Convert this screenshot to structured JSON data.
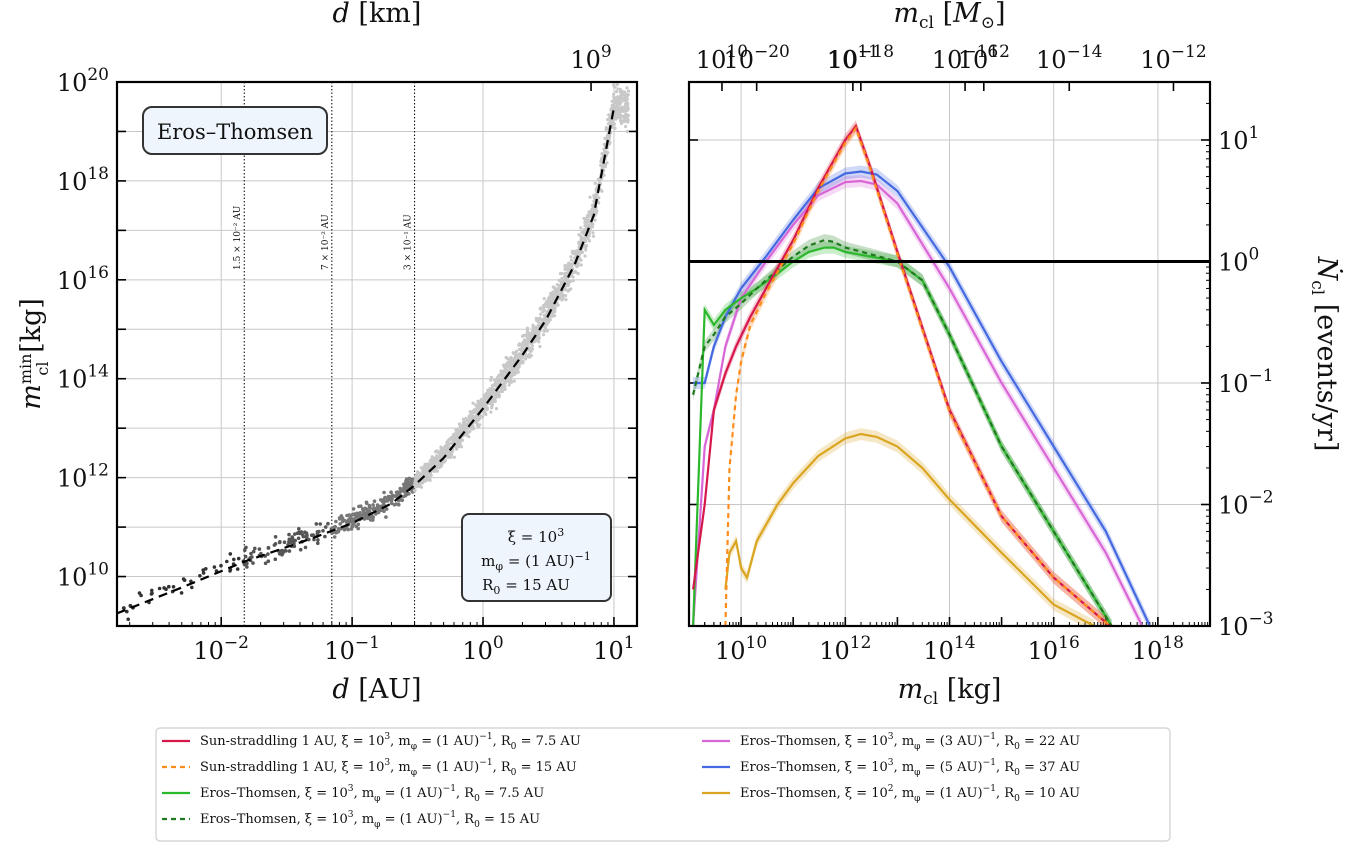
{
  "chart_data": [
    {
      "type": "scatter",
      "panel": "left",
      "xlabel": "d [AU]",
      "ylabel": "m_cl^min [kg]",
      "top_xlabel": "d [km]",
      "xscale": "log",
      "yscale": "log",
      "xlim": [
        0.0016,
        15
      ],
      "ylim": [
        1000000000.0,
        1e+20
      ],
      "top_xlim_km": [
        240000000.0,
        2240000000000.0
      ],
      "x_ticks": [
        "10^{-2}",
        "10^{-1}",
        "10^{0}",
        "10^{1}"
      ],
      "y_ticks": [
        "10^{10}",
        "10^{12}",
        "10^{14}",
        "10^{16}",
        "10^{18}",
        "10^{20}"
      ],
      "top_x_ticks": [
        "10^{9}",
        "10^{10}",
        "10^{11}",
        "10^{12}"
      ],
      "grid": true,
      "label_box": "Eros–Thomsen",
      "param_box": [
        "ξ = 10",
        "3",
        "m",
        "φ",
        " = (1 AU)",
        "−1",
        "R",
        "0",
        " = 15 AU"
      ],
      "vlines": [
        {
          "x": 0.015,
          "label": "1.5 × 10⁻² AU"
        },
        {
          "x": 0.07,
          "label": "7 × 10⁻² AU"
        },
        {
          "x": 0.3,
          "label": "3 × 10⁻¹ AU"
        }
      ],
      "curve": {
        "style": "dashed",
        "x": [
          0.0016,
          0.005,
          0.015,
          0.05,
          0.1,
          0.2,
          0.3,
          0.5,
          1,
          2,
          3,
          5,
          7,
          10
        ],
        "y": [
          1800000000.0,
          6000000000.0,
          20000000000.0,
          60000000000.0,
          120000000000.0,
          300000000000.0,
          700000000000.0,
          2500000000000.0,
          25000000000000.0,
          300000000000000.0,
          1500000000000000.0,
          2e+16,
          2e+17,
          3e+19
        ]
      },
      "scatter_groups": [
        {
          "color": "#333333",
          "range_x": [
            0.0018,
            0.015
          ],
          "points": 40
        },
        {
          "color": "#555555",
          "range_x": [
            0.015,
            0.07
          ],
          "points": 90
        },
        {
          "color": "#777777",
          "range_x": [
            0.07,
            0.3
          ],
          "points": 220
        },
        {
          "color": "#c8c8c8",
          "range_x": [
            0.3,
            13
          ],
          "points": 1900
        }
      ]
    },
    {
      "type": "line",
      "panel": "right",
      "xlabel": "m_cl [kg]",
      "ylabel": "Ṅ_cl [events/yr]",
      "top_xlabel": "m_cl [M_⊙]",
      "xscale": "log",
      "yscale": "log",
      "xlim": [
        1000000000.0,
        1e+19
      ],
      "ylim": [
        0.001,
        30
      ],
      "top_xlim_msun": [
        5e-22,
        5e-12
      ],
      "x_ticks": [
        "10^{10}",
        "10^{12}",
        "10^{14}",
        "10^{16}",
        "10^{18}"
      ],
      "y_ticks": [
        "10^{-3}",
        "10^{-2}",
        "10^{-1}",
        "10^{0}",
        "10^{1}"
      ],
      "top_x_ticks": [
        "10^{-20}",
        "10^{-18}",
        "10^{-16}",
        "10^{-14}",
        "10^{-12}"
      ],
      "hline": 1,
      "grid": true,
      "series": [
        {
          "name": "Sun-straddling 1 AU, ξ = 10^3, m_φ = (1 AU)^{-1}, R_0 = 7.5 AU",
          "color": "#d6174c",
          "dash": false,
          "x": [
            1200000000.0,
            2000000000.0,
            3000000000.0,
            5000000000.0,
            8000000000.0,
            15000000000.0,
            30000000000.0,
            100000000000.0,
            300000000000.0,
            1000000000000.0,
            1600000000000.0,
            3000000000000.0,
            10000000000000.0,
            100000000000000.0,
            1000000000000000.0,
            1e+16,
            1.2e+17
          ],
          "y": [
            0.002,
            0.01,
            0.06,
            0.12,
            0.2,
            0.35,
            0.6,
            1.5,
            4,
            10,
            13,
            6,
            1.2,
            0.06,
            0.008,
            0.0025,
            0.001
          ]
        },
        {
          "name": "Sun-straddling 1 AU, ξ = 10^3, m_φ = (1 AU)^{-1}, R_0 = 15 AU",
          "color": "#ff8c1a",
          "dash": true,
          "x": [
            5000000000.0,
            6000000000.0,
            8000000000.0,
            10000000000.0,
            15000000000.0,
            30000000000.0,
            100000000000.0,
            300000000000.0,
            1000000000000.0,
            1600000000000.0,
            3000000000000.0,
            10000000000000.0,
            100000000000000.0,
            1000000000000000.0,
            1e+16,
            1.2e+17
          ],
          "y": [
            0.001,
            0.02,
            0.08,
            0.15,
            0.3,
            0.55,
            1.4,
            3.8,
            9.5,
            12.5,
            5.8,
            1.15,
            0.058,
            0.008,
            0.0025,
            0.001
          ]
        },
        {
          "name": "Eros–Thomsen, ξ = 10^3, m_φ = (1 AU)^{-1}, R_0 = 7.5 AU",
          "color": "#2cb82c",
          "dash": false,
          "x": [
            1200000000.0,
            2000000000.0,
            3000000000.0,
            5000000000.0,
            10000000000.0,
            20000000000.0,
            50000000000.0,
            100000000000.0,
            200000000000.0,
            400000000000.0,
            600000000000.0,
            1000000000000.0,
            3000000000000.0,
            10000000000000.0,
            30000000000000.0,
            100000000000000.0,
            1000000000000000.0,
            1e+16,
            1.3e+17
          ],
          "y": [
            0.001,
            0.4,
            0.3,
            0.4,
            0.5,
            0.6,
            0.8,
            1.0,
            1.2,
            1.3,
            1.3,
            1.2,
            1.1,
            1.0,
            0.7,
            0.25,
            0.03,
            0.006,
            0.001
          ]
        },
        {
          "name": "Eros–Thomsen, ξ = 10^3, m_φ = (1 AU)^{-1}, R_0 = 15 AU",
          "color": "#1e7a1e",
          "dash": true,
          "x": [
            1200000000.0,
            2000000000.0,
            3000000000.0,
            5000000000.0,
            10000000000.0,
            20000000000.0,
            50000000000.0,
            100000000000.0,
            200000000000.0,
            400000000000.0,
            600000000000.0,
            1000000000000.0,
            3000000000000.0,
            10000000000000.0,
            30000000000000.0,
            100000000000000.0,
            1000000000000000.0,
            1e+16,
            1.3e+17
          ],
          "y": [
            0.08,
            0.2,
            0.25,
            0.35,
            0.45,
            0.6,
            0.85,
            1.1,
            1.35,
            1.5,
            1.45,
            1.3,
            1.15,
            1.0,
            0.7,
            0.25,
            0.03,
            0.006,
            0.001
          ]
        },
        {
          "name": "Eros–Thomsen, ξ = 10^3, m_φ = (3 AU)^{-1}, R_0 = 22 AU",
          "color": "#d966d6",
          "dash": false,
          "x": [
            1200000000.0,
            2000000000.0,
            3000000000.0,
            5000000000.0,
            10000000000.0,
            30000000000.0,
            100000000000.0,
            300000000000.0,
            1000000000000.0,
            2000000000000.0,
            4000000000000.0,
            10000000000000.0,
            100000000000000.0,
            1000000000000000.0,
            1e+16,
            1e+17,
            5e+17
          ],
          "y": [
            0.001,
            0.03,
            0.06,
            0.2,
            0.5,
            1.0,
            2.0,
            3.5,
            4.5,
            4.6,
            4.3,
            3.0,
            0.6,
            0.1,
            0.02,
            0.004,
            0.001
          ]
        },
        {
          "name": "Eros–Thomsen, ξ = 10^3, m_φ = (5 AU)^{-1}, R_0 = 37 AU",
          "color": "#4469e0",
          "dash": false,
          "x": [
            1200000000.0,
            2000000000.0,
            3000000000.0,
            5000000000.0,
            10000000000.0,
            30000000000.0,
            100000000000.0,
            300000000000.0,
            1000000000000.0,
            2000000000000.0,
            4000000000000.0,
            10000000000000.0,
            100000000000000.0,
            1000000000000000.0,
            1e+16,
            1e+17,
            7e+17
          ],
          "y": [
            0.1,
            0.1,
            0.2,
            0.35,
            0.6,
            1.1,
            2.2,
            4.0,
            5.3,
            5.5,
            5.2,
            3.8,
            0.9,
            0.15,
            0.03,
            0.006,
            0.001
          ]
        },
        {
          "name": "Eros–Thomsen, ξ = 10^2, m_φ = (1 AU)^{-1}, R_0 = 10 AU",
          "color": "#daa520",
          "dash": false,
          "x": [
            5000000000.0,
            6000000000.0,
            8000000000.0,
            10000000000.0,
            13000000000.0,
            20000000000.0,
            50000000000.0,
            100000000000.0,
            300000000000.0,
            1000000000000.0,
            2000000000000.0,
            4000000000000.0,
            10000000000000.0,
            30000000000000.0,
            100000000000000.0,
            1000000000000000.0,
            1e+16,
            6e+16
          ],
          "y": [
            0.002,
            0.004,
            0.005,
            0.003,
            0.0025,
            0.005,
            0.01,
            0.015,
            0.025,
            0.035,
            0.038,
            0.036,
            0.03,
            0.02,
            0.011,
            0.004,
            0.0015,
            0.001
          ]
        }
      ]
    }
  ],
  "legend_rows": [
    [
      "Sun-straddling 1 AU, ξ = 10",
      "3",
      ", m",
      "φ",
      " = (1 AU)",
      "−1",
      ", R",
      "0",
      " = 7.5 AU"
    ],
    [
      "Sun-straddling 1 AU, ξ = 10",
      "3",
      ", m",
      "φ",
      " = (1 AU)",
      "−1",
      ", R",
      "0",
      " = 15 AU"
    ],
    [
      "Eros–Thomsen, ξ = 10",
      "3",
      ", m",
      "φ",
      " = (1 AU)",
      "−1",
      ", R",
      "0",
      " = 7.5 AU"
    ],
    [
      "Eros–Thomsen, ξ = 10",
      "3",
      ", m",
      "φ",
      " = (1 AU)",
      "−1",
      ", R",
      "0",
      " = 15 AU"
    ],
    [
      "Eros–Thomsen, ξ = 10",
      "3",
      ", m",
      "φ",
      " = (3 AU)",
      "−1",
      ", R",
      "0",
      " = 22 AU"
    ],
    [
      "Eros–Thomsen, ξ = 10",
      "3",
      ", m",
      "φ",
      " = (5 AU)",
      "−1",
      ", R",
      "0",
      " = 37 AU"
    ],
    [
      "Eros–Thomsen, ξ = 10",
      "2",
      ", m",
      "φ",
      " = (1 AU)",
      "−1",
      ", R",
      "0",
      " = 10 AU"
    ]
  ]
}
